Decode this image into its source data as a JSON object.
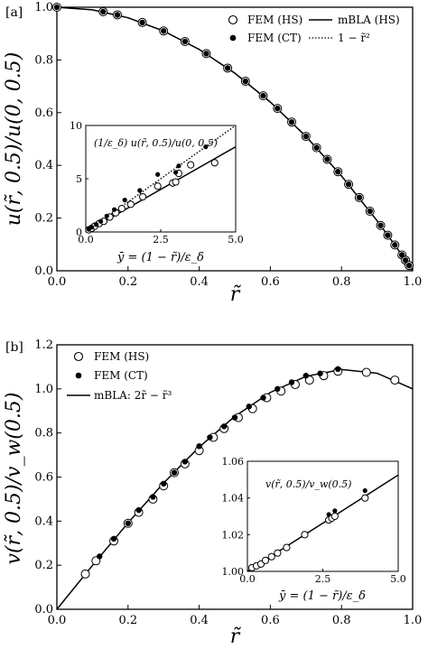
{
  "chart_data": [
    {
      "type": "scatter",
      "panel_label": "[a]",
      "xlabel": "r̃",
      "ylabel": "u(r̃, 0.5)/u(0, 0.5)",
      "xlim": [
        0.0,
        1.0
      ],
      "ylim": [
        0.0,
        1.0
      ],
      "x_ticks": [
        "0.0",
        "0.2",
        "0.4",
        "0.6",
        "0.8",
        "1.0"
      ],
      "y_ticks": [
        "0.0",
        "0.2",
        "0.4",
        "0.6",
        "0.8",
        "1.0"
      ],
      "grid": false,
      "legend_position": "top-right",
      "series": [
        {
          "name": "FEM (HS)",
          "kind": "open-circle",
          "x": [
            0.0,
            0.13,
            0.17,
            0.24,
            0.3,
            0.36,
            0.42,
            0.48,
            0.53,
            0.58,
            0.62,
            0.66,
            0.7,
            0.73,
            0.76,
            0.79,
            0.82,
            0.85,
            0.88,
            0.91,
            0.93,
            0.95,
            0.97,
            0.98,
            0.99
          ],
          "y": [
            1.0,
            0.983,
            0.971,
            0.942,
            0.91,
            0.87,
            0.824,
            0.769,
            0.719,
            0.664,
            0.616,
            0.564,
            0.51,
            0.467,
            0.423,
            0.376,
            0.328,
            0.278,
            0.226,
            0.172,
            0.135,
            0.098,
            0.06,
            0.04,
            0.02
          ]
        },
        {
          "name": "FEM (CT)",
          "kind": "filled-circle",
          "x": [
            0.0,
            0.13,
            0.17,
            0.24,
            0.3,
            0.36,
            0.42,
            0.48,
            0.53,
            0.58,
            0.62,
            0.66,
            0.7,
            0.73,
            0.76,
            0.79,
            0.82,
            0.85,
            0.88,
            0.91,
            0.93,
            0.95,
            0.97,
            0.98,
            0.99
          ],
          "y": [
            1.0,
            0.983,
            0.971,
            0.942,
            0.91,
            0.87,
            0.824,
            0.769,
            0.719,
            0.664,
            0.616,
            0.564,
            0.51,
            0.467,
            0.423,
            0.376,
            0.328,
            0.278,
            0.226,
            0.172,
            0.135,
            0.098,
            0.06,
            0.04,
            0.02
          ]
        },
        {
          "name": "mBLA (HS)",
          "kind": "solid-line",
          "x": [
            0.0,
            0.1,
            0.2,
            0.3,
            0.4,
            0.5,
            0.6,
            0.7,
            0.8,
            0.9,
            0.95,
            0.98,
            1.0
          ],
          "y": [
            1.0,
            0.99,
            0.96,
            0.91,
            0.84,
            0.75,
            0.64,
            0.51,
            0.36,
            0.19,
            0.098,
            0.04,
            0.0
          ]
        },
        {
          "name": "1 − r̃²",
          "kind": "dotted-line",
          "x": [
            0.0,
            0.1,
            0.2,
            0.3,
            0.4,
            0.5,
            0.6,
            0.7,
            0.8,
            0.9,
            0.95,
            0.98,
            1.0
          ],
          "y": [
            1.0,
            0.99,
            0.96,
            0.91,
            0.84,
            0.75,
            0.64,
            0.51,
            0.36,
            0.19,
            0.0975,
            0.0396,
            0.0
          ]
        }
      ],
      "inset": {
        "label": "(1/ε_δ) u(r̃, 0.5)/u(0, 0.5)",
        "xlabel": "ȳ = (1 − r̃)/ε_δ",
        "xlim": [
          0.0,
          5.0
        ],
        "ylim": [
          0.0,
          10.0
        ],
        "x_ticks": [
          "0.0",
          "2.5",
          "5.0"
        ],
        "y_ticks": [
          "0",
          "5",
          "10"
        ],
        "series": [
          {
            "name": "FEM (HS)",
            "kind": "open-circle",
            "x": [
              0.1,
              0.2,
              0.3,
              0.45,
              0.6,
              0.8,
              1.0,
              1.2,
              1.5,
              1.9,
              2.4,
              2.9,
              3.0,
              3.1,
              3.5,
              4.3
            ],
            "y": [
              0.2,
              0.35,
              0.55,
              0.8,
              1.0,
              1.4,
              1.8,
              2.2,
              2.6,
              3.3,
              4.3,
              4.6,
              4.7,
              5.5,
              6.3,
              6.5
            ]
          },
          {
            "name": "FEM (CT)",
            "kind": "filled-circle",
            "x": [
              0.1,
              0.2,
              0.35,
              0.5,
              0.7,
              0.95,
              1.3,
              1.8,
              2.4,
              3.0,
              3.1,
              4.0
            ],
            "y": [
              0.25,
              0.45,
              0.7,
              1.0,
              1.5,
              2.1,
              3.0,
              3.9,
              5.4,
              5.6,
              6.2,
              8.0
            ]
          },
          {
            "name": "mBLA (HS)",
            "kind": "solid-line",
            "x": [
              0.0,
              1.0,
              2.0,
              3.0,
              4.0,
              5.0
            ],
            "y": [
              0.0,
              1.6,
              3.2,
              4.8,
              6.4,
              8.0
            ]
          },
          {
            "name": "1 − r̃²",
            "kind": "dotted-line",
            "x": [
              0.0,
              1.0,
              2.0,
              3.0,
              4.0,
              5.0
            ],
            "y": [
              0.0,
              2.0,
              4.0,
              6.0,
              8.0,
              10.0
            ]
          }
        ]
      }
    },
    {
      "type": "scatter",
      "panel_label": "[b]",
      "xlabel": "r̃",
      "ylabel": "v(r̃, 0.5)/v_w(0.5)",
      "xlim": [
        0.0,
        1.0
      ],
      "ylim": [
        0.0,
        1.2
      ],
      "x_ticks": [
        "0.0",
        "0.2",
        "0.4",
        "0.6",
        "0.8",
        "1.0"
      ],
      "y_ticks": [
        "0.0",
        "0.2",
        "0.4",
        "0.6",
        "0.8",
        "1.0",
        "1.2"
      ],
      "grid": false,
      "legend_position": "top-left",
      "series": [
        {
          "name": "FEM (HS)",
          "kind": "open-circle",
          "x": [
            0.08,
            0.11,
            0.16,
            0.2,
            0.23,
            0.27,
            0.3,
            0.33,
            0.36,
            0.4,
            0.44,
            0.47,
            0.51,
            0.55,
            0.59,
            0.63,
            0.67,
            0.71,
            0.75,
            0.79,
            0.87,
            0.95
          ],
          "y": [
            0.16,
            0.22,
            0.31,
            0.39,
            0.44,
            0.5,
            0.56,
            0.62,
            0.66,
            0.72,
            0.78,
            0.82,
            0.87,
            0.91,
            0.96,
            0.99,
            1.02,
            1.04,
            1.06,
            1.08,
            1.075,
            1.04
          ]
        },
        {
          "name": "FEM (CT)",
          "kind": "filled-circle",
          "x": [
            0.12,
            0.16,
            0.2,
            0.23,
            0.27,
            0.3,
            0.33,
            0.36,
            0.4,
            0.43,
            0.47,
            0.5,
            0.54,
            0.58,
            0.62,
            0.66,
            0.7,
            0.74,
            0.79
          ],
          "y": [
            0.24,
            0.32,
            0.39,
            0.45,
            0.51,
            0.57,
            0.62,
            0.67,
            0.74,
            0.78,
            0.83,
            0.87,
            0.92,
            0.96,
            1.0,
            1.03,
            1.06,
            1.07,
            1.09
          ]
        },
        {
          "name": "mBLA: 2r̃ − r̃³",
          "kind": "solid-line",
          "x": [
            0.0,
            0.1,
            0.2,
            0.3,
            0.4,
            0.5,
            0.6,
            0.7,
            0.8,
            0.9,
            1.0
          ],
          "y": [
            0.0,
            0.199,
            0.392,
            0.573,
            0.736,
            0.875,
            0.984,
            1.057,
            1.088,
            1.071,
            1.0
          ]
        }
      ],
      "inset": {
        "label": "v(r̃, 0.5)/v_w(0.5)",
        "xlabel": "ȳ = (1 − r̃)/ε_δ",
        "xlim": [
          0.0,
          5.0
        ],
        "ylim": [
          1.0,
          1.06
        ],
        "x_ticks": [
          "0.0",
          "2.5",
          "5.0"
        ],
        "y_ticks": [
          "1.00",
          "1.02",
          "1.04",
          "1.06"
        ],
        "series": [
          {
            "name": "FEM (HS)",
            "kind": "open-circle",
            "x": [
              0.15,
              0.3,
              0.45,
              0.6,
              0.8,
              1.0,
              1.3,
              1.9,
              2.7,
              2.8,
              2.9,
              3.9
            ],
            "y": [
              1.002,
              1.003,
              1.004,
              1.006,
              1.008,
              1.01,
              1.013,
              1.02,
              1.028,
              1.029,
              1.03,
              1.04
            ]
          },
          {
            "name": "FEM (CT)",
            "kind": "filled-circle",
            "x": [
              2.7,
              2.9,
              3.9
            ],
            "y": [
              1.031,
              1.033,
              1.044
            ]
          },
          {
            "name": "mBLA: 2r̃ − r̃³",
            "kind": "solid-line",
            "x": [
              0.0,
              1.0,
              2.0,
              3.0,
              4.0,
              5.0
            ],
            "y": [
              1.0,
              1.0105,
              1.021,
              1.0315,
              1.042,
              1.0525
            ]
          }
        ]
      }
    }
  ]
}
